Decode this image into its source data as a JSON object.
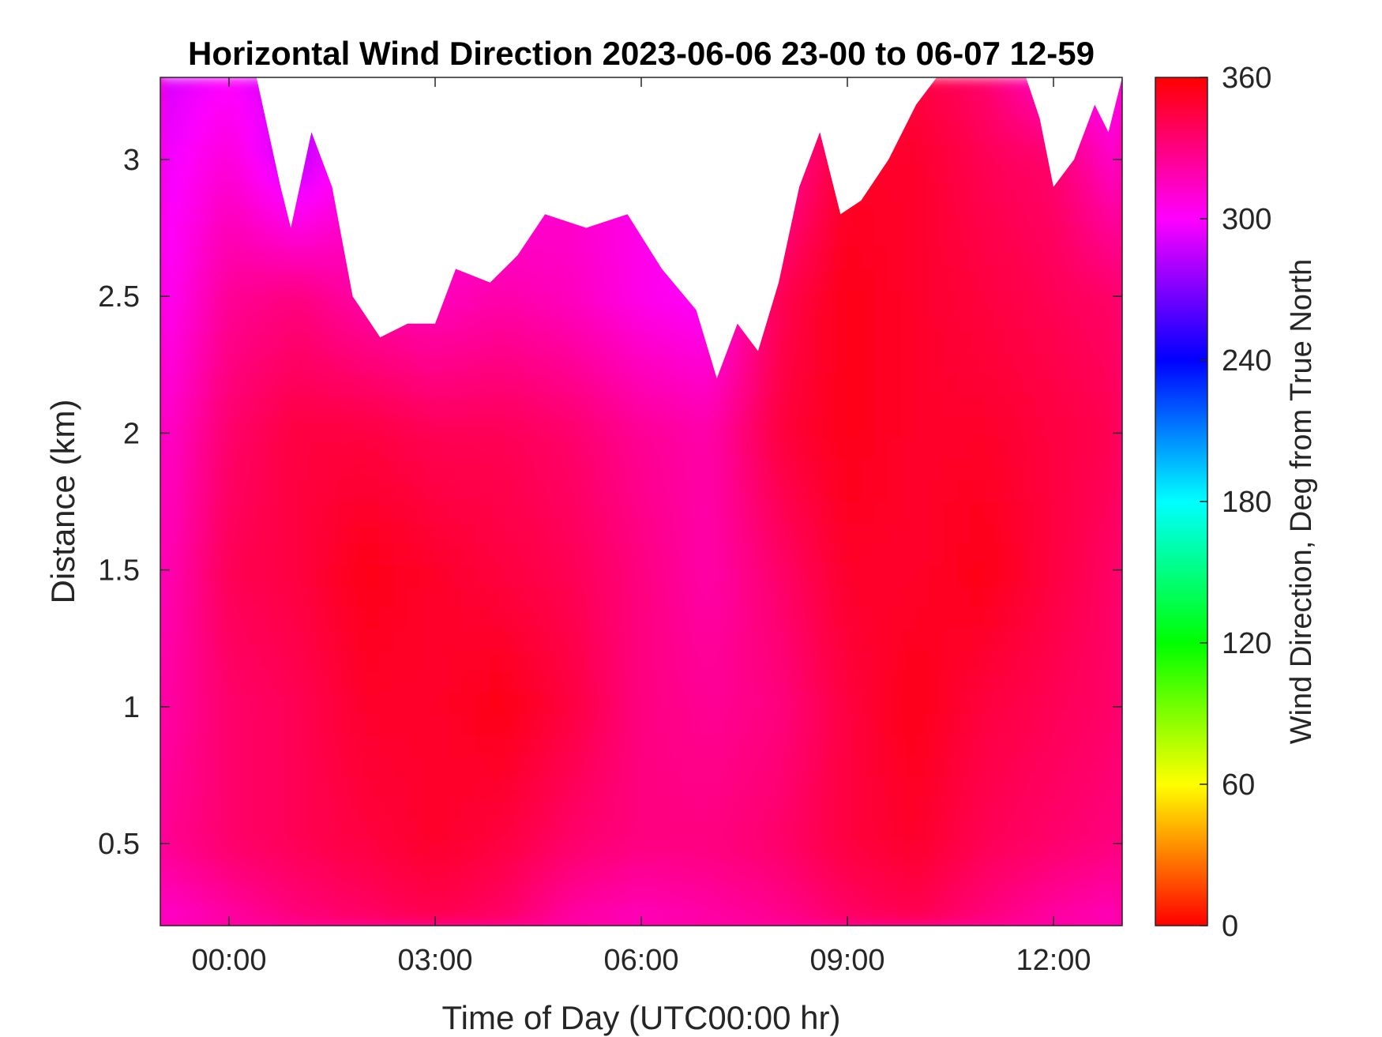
{
  "chart_data": {
    "type": "heatmap",
    "title": "Horizontal Wind Direction 2023-06-06 23-00 to 06-07 12-59",
    "xlabel": "Time of Day (UTC00:00 hr)",
    "ylabel": "Distance (km)",
    "colorbar_label": "Wind Direction, Deg from True North",
    "x_unit": "hours",
    "xlim": [
      -1.0,
      13.0
    ],
    "ylim": [
      0.2,
      3.3
    ],
    "x_ticks": [
      0,
      3,
      6,
      9,
      12
    ],
    "x_tick_labels": [
      "00:00",
      "03:00",
      "06:00",
      "09:00",
      "12:00"
    ],
    "y_ticks": [
      0.5,
      1,
      1.5,
      2,
      2.5,
      3
    ],
    "y_tick_labels": [
      "0.5",
      "1",
      "1.5",
      "2",
      "2.5",
      "3"
    ],
    "colorbar_ticks": [
      0,
      60,
      120,
      180,
      240,
      300,
      360
    ],
    "colorbar_tick_labels": [
      "0",
      "60",
      "120",
      "180",
      "240",
      "300",
      "360"
    ],
    "clim": [
      0,
      360
    ],
    "colormap": [
      "#ff0000",
      "#ffff00",
      "#00ff00",
      "#00ffff",
      "#0000ff",
      "#ff00ff",
      "#ff0000"
    ],
    "data_top_km": [
      [
        -1.0,
        3.3
      ],
      [
        0.4,
        3.3
      ],
      [
        0.75,
        2.9
      ],
      [
        0.9,
        2.75
      ],
      [
        1.2,
        3.1
      ],
      [
        1.5,
        2.9
      ],
      [
        1.8,
        2.5
      ],
      [
        2.2,
        2.35
      ],
      [
        2.6,
        2.4
      ],
      [
        3.0,
        2.4
      ],
      [
        3.3,
        2.6
      ],
      [
        3.8,
        2.55
      ],
      [
        4.2,
        2.65
      ],
      [
        4.6,
        2.8
      ],
      [
        5.2,
        2.75
      ],
      [
        5.8,
        2.8
      ],
      [
        6.3,
        2.6
      ],
      [
        6.8,
        2.45
      ],
      [
        7.1,
        2.2
      ],
      [
        7.4,
        2.4
      ],
      [
        7.7,
        2.3
      ],
      [
        8.0,
        2.55
      ],
      [
        8.3,
        2.9
      ],
      [
        8.6,
        3.1
      ],
      [
        8.9,
        2.8
      ],
      [
        9.2,
        2.85
      ],
      [
        9.6,
        3.0
      ],
      [
        10.0,
        3.2
      ],
      [
        10.3,
        3.3
      ],
      [
        11.6,
        3.3
      ],
      [
        11.8,
        3.15
      ],
      [
        12.0,
        2.9
      ],
      [
        12.3,
        3.0
      ],
      [
        12.6,
        3.2
      ],
      [
        12.8,
        3.1
      ],
      [
        13.0,
        3.3
      ]
    ],
    "field": {
      "x": [
        -1.0,
        0.0,
        1.0,
        2.0,
        3.0,
        4.0,
        5.0,
        6.0,
        7.0,
        8.0,
        9.0,
        10.0,
        11.0,
        12.0,
        13.0
      ],
      "y": [
        0.2,
        0.5,
        1.0,
        1.5,
        2.0,
        2.5,
        3.0,
        3.3
      ],
      "values": [
        [
          310,
          320,
          330,
          335,
          340,
          335,
          320,
          315,
          320,
          325,
          335,
          340,
          330,
          320,
          315
        ],
        [
          325,
          335,
          340,
          345,
          350,
          345,
          335,
          330,
          330,
          335,
          345,
          350,
          340,
          335,
          330
        ],
        [
          320,
          335,
          340,
          350,
          350,
          355,
          345,
          330,
          325,
          330,
          345,
          355,
          345,
          340,
          335
        ],
        [
          315,
          340,
          345,
          355,
          350,
          345,
          340,
          330,
          320,
          335,
          350,
          350,
          355,
          345,
          335
        ],
        [
          310,
          335,
          345,
          345,
          340,
          340,
          335,
          325,
          320,
          345,
          355,
          350,
          350,
          345,
          340
        ],
        [
          300,
          325,
          330,
          320,
          315,
          320,
          315,
          305,
          300,
          340,
          355,
          350,
          345,
          340,
          335
        ],
        [
          295,
          310,
          285,
          310,
          305,
          305,
          310,
          305,
          300,
          320,
          350,
          350,
          340,
          335,
          310
        ],
        [
          290,
          300,
          285,
          300,
          300,
          305,
          305,
          305,
          300,
          315,
          340,
          345,
          335,
          310,
          300
        ]
      ]
    }
  }
}
